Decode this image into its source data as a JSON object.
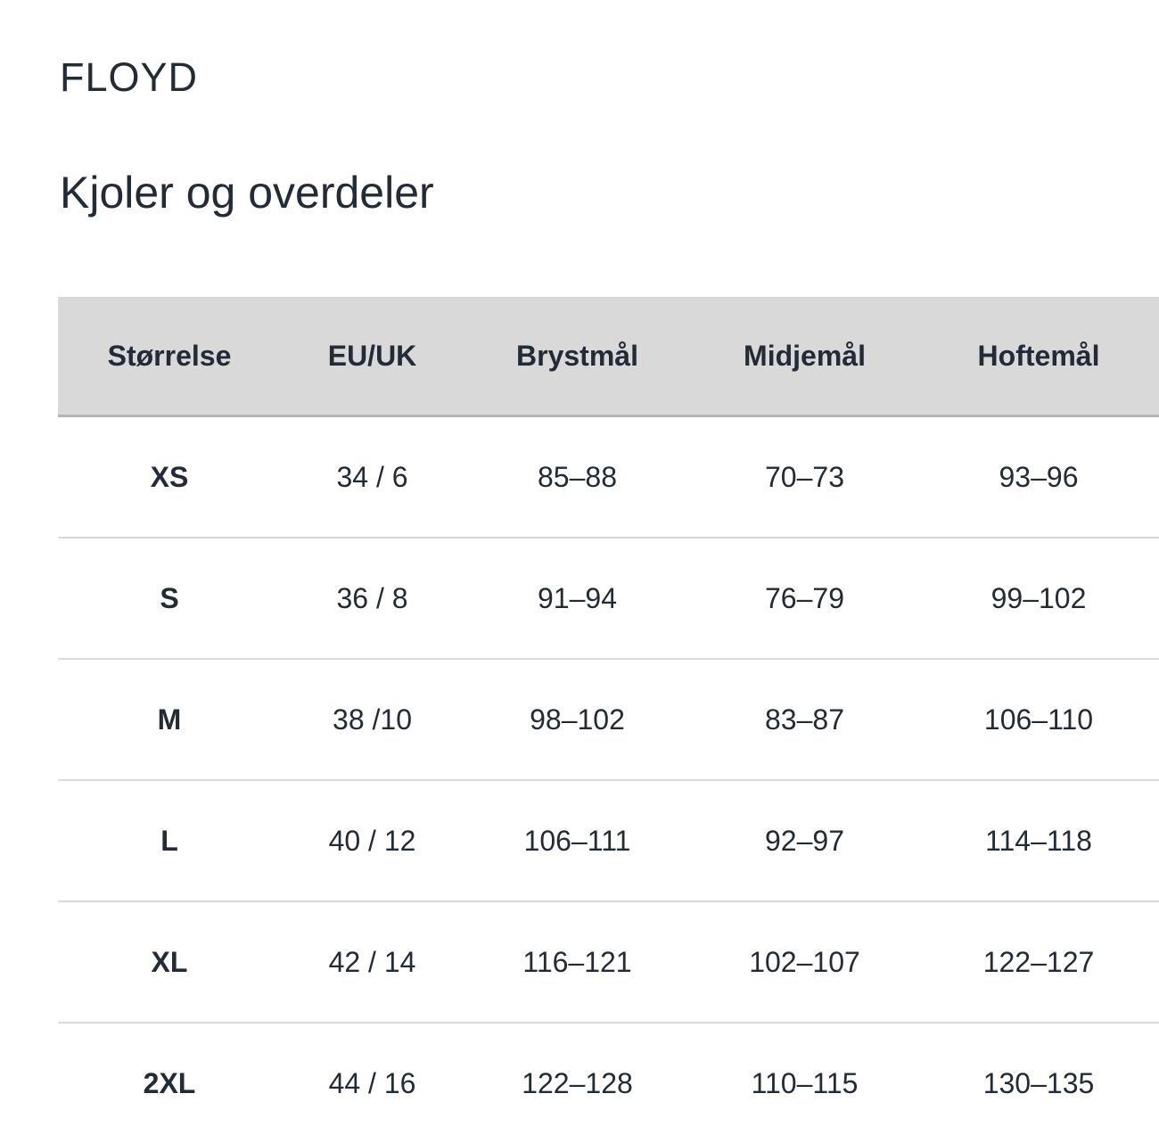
{
  "page": {
    "brand": "FLOYD",
    "title": "Kjoler og overdeler"
  },
  "colors": {
    "text": "#222b36",
    "header_background": "#d9d9d9",
    "header_border": "#b3b5b8",
    "row_separator": "#d9d9d9",
    "page_background": "#ffffff"
  },
  "table": {
    "columns": [
      "Størrelse",
      "EU/UK",
      "Brystmål",
      "Midjemål",
      "Hoftemål"
    ],
    "rows": [
      {
        "cells": [
          "XS",
          "34 / 6",
          "85–88",
          "70–73",
          "93–96"
        ]
      },
      {
        "cells": [
          "S",
          "36 / 8",
          "91–94",
          "76–79",
          "99–102"
        ]
      },
      {
        "cells": [
          "M",
          "38 /10",
          "98–102",
          "83–87",
          "106–110"
        ]
      },
      {
        "cells": [
          "L",
          "40 / 12",
          "106–111",
          "92–97",
          "114–118"
        ]
      },
      {
        "cells": [
          "XL",
          "42 / 14",
          "116–121",
          "102–107",
          "122–127"
        ]
      },
      {
        "cells": [
          "2XL",
          "44 / 16",
          "122–128",
          "110–115",
          "130–135"
        ]
      }
    ]
  }
}
